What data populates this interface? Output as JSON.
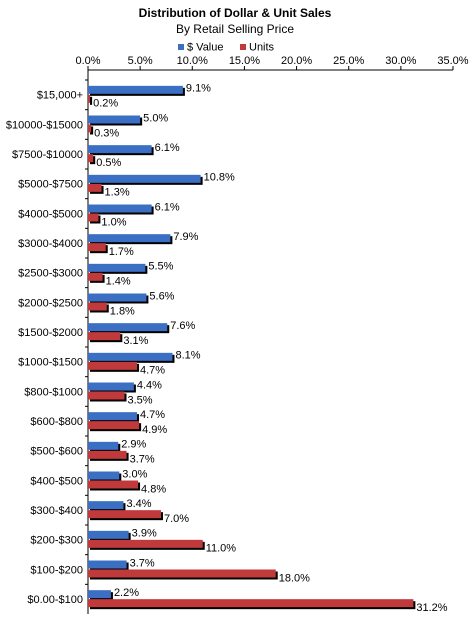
{
  "chart_data": {
    "type": "bar",
    "title": "Distribution of Dollar & Unit Sales",
    "subtitle": "By Retail Selling Price",
    "categories": [
      "$15,000+",
      "$10000-$15000",
      "$7500-$10000",
      "$5000-$7500",
      "$4000-$5000",
      "$3000-$4000",
      "$2500-$3000",
      "$2000-$2500",
      "$1500-$2000",
      "$1000-$1500",
      "$800-$1000",
      "$600-$800",
      "$500-$600",
      "$400-$500",
      "$300-$400",
      "$200-$300",
      "$100-$200",
      "$0.00-$100"
    ],
    "series": [
      {
        "name": "$ Value",
        "color": "#3a6fc4",
        "values": [
          9.1,
          5.0,
          6.1,
          10.8,
          6.1,
          7.9,
          5.5,
          5.6,
          7.6,
          8.1,
          4.4,
          4.7,
          2.9,
          3.0,
          3.4,
          3.9,
          3.7,
          2.2
        ],
        "value_labels": [
          "9.1%",
          "5.0%",
          "6.1%",
          "10.8%",
          "6.1%",
          "7.9%",
          "5.5%",
          "5.6%",
          "7.6%",
          "8.1%",
          "4.4%",
          "4.7%",
          "2.9%",
          "3.0%",
          "3.4%",
          "3.9%",
          "3.7%",
          "2.2%"
        ]
      },
      {
        "name": "Units",
        "color": "#c0393b",
        "values": [
          0.2,
          0.3,
          0.5,
          1.3,
          1.0,
          1.7,
          1.4,
          1.8,
          3.1,
          4.7,
          3.5,
          4.9,
          3.7,
          4.8,
          7.0,
          11.0,
          18.0,
          31.2
        ],
        "value_labels": [
          "0.2%",
          "0.3%",
          "0.5%",
          "1.3%",
          "1.0%",
          "1.7%",
          "1.4%",
          "1.8%",
          "3.1%",
          "4.7%",
          "3.5%",
          "4.9%",
          "3.7%",
          "4.8%",
          "7.0%",
          "11.0%",
          "18.0%",
          "31.2%"
        ]
      }
    ],
    "xlim": [
      0,
      35
    ],
    "xticks": [
      {
        "value": 0,
        "label": "0.0%"
      },
      {
        "value": 5,
        "label": "5.0%"
      },
      {
        "value": 10,
        "label": "10.0%"
      },
      {
        "value": 15,
        "label": "15.0%"
      },
      {
        "value": 20,
        "label": "20.0%"
      },
      {
        "value": 25,
        "label": "25.0%"
      },
      {
        "value": 30,
        "label": "30.0%"
      },
      {
        "value": 35,
        "label": "35.0%"
      }
    ]
  }
}
